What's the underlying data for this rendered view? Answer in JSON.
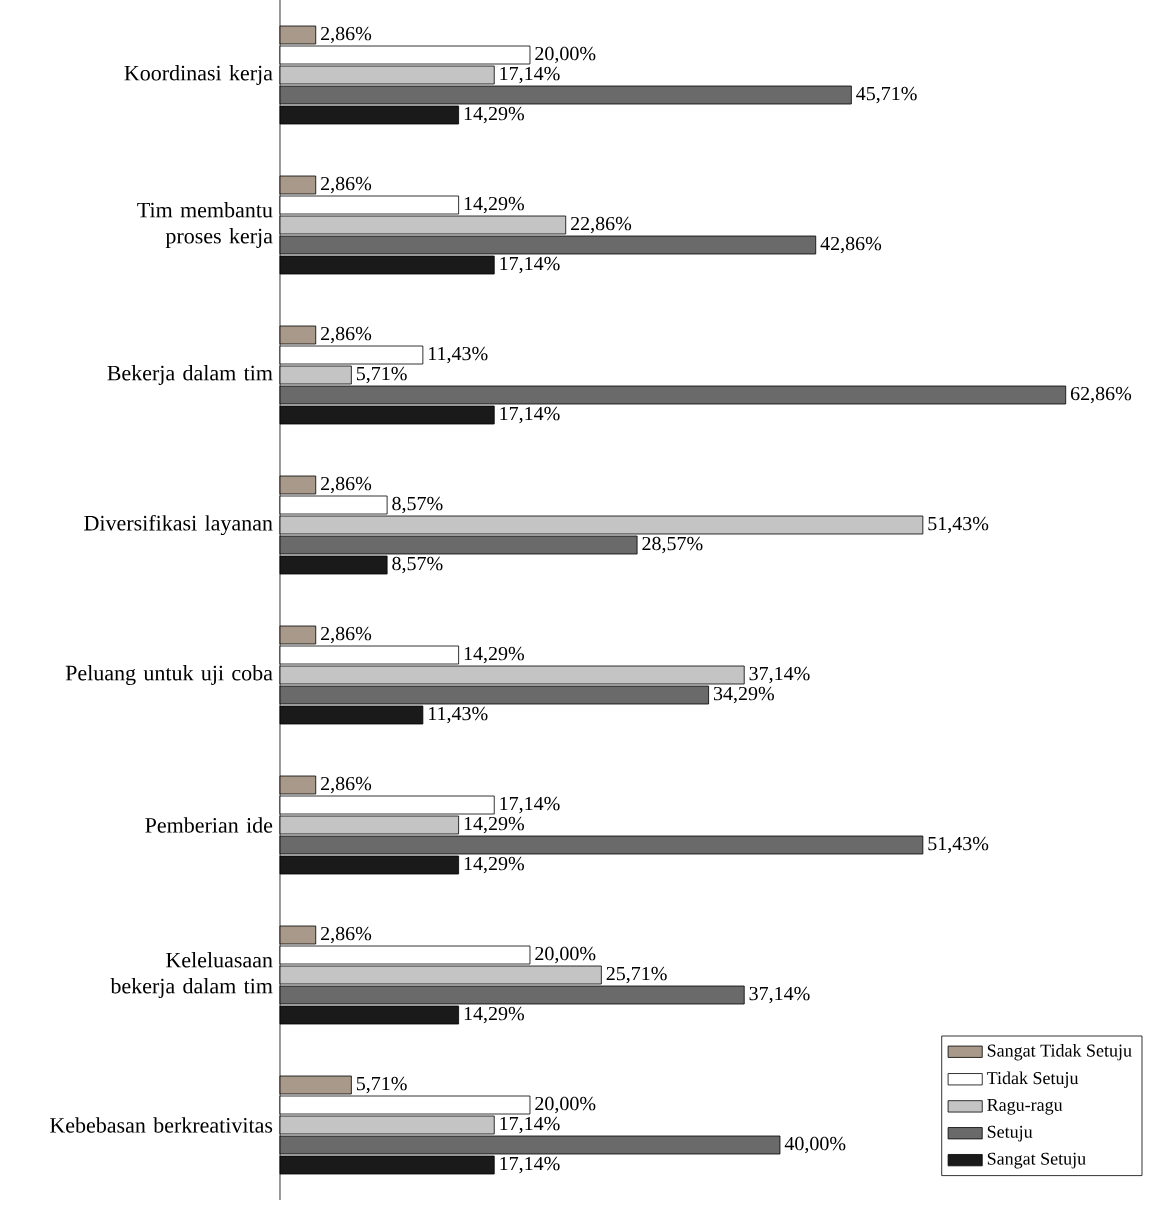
{
  "chart_data": {
    "type": "bar",
    "orientation": "horizontal",
    "legend": "bottom right",
    "categories": [
      "Koordinasi kerja",
      "Tim membantu proses kerja",
      "Bekerja dalam tim",
      "Diversifikasi layanan",
      "Peluang untuk uji coba",
      "Pemberian ide",
      "Keleluasaan bekerja dalam tim",
      "Kebebasan berkreativitas"
    ],
    "series": [
      {
        "name": "Sangat Tidak Setuju",
        "color": "#a8998a",
        "values": [
          2.86,
          2.86,
          2.86,
          2.86,
          2.86,
          2.86,
          2.86,
          5.71
        ],
        "value_labels": [
          "2,86%",
          "2,86%",
          "2,86%",
          "2,86%",
          "2,86%",
          "2,86%",
          "2,86%",
          "5,71%"
        ]
      },
      {
        "name": "Tidak Setuju",
        "color": "#ffffff",
        "values": [
          20.0,
          14.29,
          11.43,
          8.57,
          14.29,
          17.14,
          20.0,
          20.0
        ],
        "value_labels": [
          "20,00%",
          "14,29%",
          "11,43%",
          "8,57%",
          "14,29%",
          "17,14%",
          "20,00%",
          "20,00%"
        ]
      },
      {
        "name": "Ragu-ragu",
        "color": "#c4c4c4",
        "values": [
          17.14,
          22.86,
          5.71,
          51.43,
          37.14,
          14.29,
          25.71,
          17.14
        ],
        "value_labels": [
          "17,14%",
          "22,86%",
          "5,71%",
          "51,43%",
          "37,14%",
          "14,29%",
          "25,71%",
          "17,14%"
        ]
      },
      {
        "name": "Setuju",
        "color": "#6a6a6a",
        "values": [
          45.71,
          42.86,
          62.86,
          28.57,
          34.29,
          51.43,
          37.14,
          40.0
        ],
        "value_labels": [
          "45,71%",
          "42,86%",
          "62,86%",
          "28,57%",
          "34,29%",
          "51,43%",
          "37,14%",
          "40,00%"
        ]
      },
      {
        "name": "Sangat Setuju",
        "color": "#1a1a1a",
        "values": [
          14.29,
          17.14,
          17.14,
          8.57,
          11.43,
          14.29,
          14.29,
          17.14
        ],
        "value_labels": [
          "14,29%",
          "17,14%",
          "17,14%",
          "8,57%",
          "11,43%",
          "14,29%",
          "14,29%",
          "17,14%"
        ]
      }
    ]
  }
}
